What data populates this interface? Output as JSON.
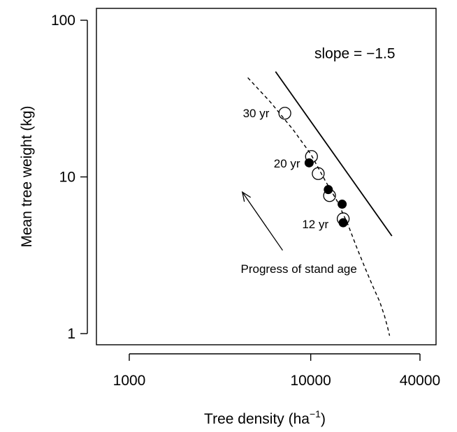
{
  "chart_data": {
    "type": "scatter",
    "xlabel": "Tree density (ha",
    "xlabel_superscript": "−1",
    "xlabel_close": ")",
    "ylabel": "Mean tree weight (kg)",
    "x_scale": "log",
    "y_scale": "log",
    "xlim": [
      1000,
      40000
    ],
    "ylim": [
      1,
      100
    ],
    "x_ticks": [
      1000,
      10000,
      40000
    ],
    "x_tick_labels": [
      "1000",
      "10000",
      "40000"
    ],
    "y_ticks": [
      1,
      10,
      100
    ],
    "y_tick_labels": [
      "1",
      "10",
      "100"
    ],
    "grid": false,
    "series": [
      {
        "marker": "open-circle",
        "points": [
          {
            "x": 7200,
            "y": 25.5
          },
          {
            "x": 10100,
            "y": 13.5
          },
          {
            "x": 11000,
            "y": 10.5
          },
          {
            "x": 12700,
            "y": 7.6
          },
          {
            "x": 15100,
            "y": 5.4
          }
        ]
      },
      {
        "marker": "filled-circle",
        "points": [
          {
            "x": 9800,
            "y": 12.3
          },
          {
            "x": 12500,
            "y": 8.3
          },
          {
            "x": 14900,
            "y": 6.7
          },
          {
            "x": 15100,
            "y": 5.1
          }
        ]
      }
    ],
    "curves": [
      {
        "style": "dashed",
        "points": [
          {
            "x": 4500,
            "y": 43
          },
          {
            "x": 6000,
            "y": 30
          },
          {
            "x": 8000,
            "y": 20
          },
          {
            "x": 10000,
            "y": 14
          },
          {
            "x": 12000,
            "y": 9.5
          },
          {
            "x": 14000,
            "y": 7
          },
          {
            "x": 16000,
            "y": 5
          },
          {
            "x": 18000,
            "y": 3.5
          },
          {
            "x": 20000,
            "y": 2.6
          },
          {
            "x": 22000,
            "y": 2
          },
          {
            "x": 24000,
            "y": 1.6
          },
          {
            "x": 25500,
            "y": 1.3
          },
          {
            "x": 26500,
            "y": 1.1
          },
          {
            "x": 27200,
            "y": 0.97
          }
        ]
      },
      {
        "style": "solid",
        "points": [
          {
            "x": 6400,
            "y": 47
          },
          {
            "x": 28000,
            "y": 4.2
          }
        ]
      }
    ],
    "annotations": [
      {
        "text": "slope = −1.5",
        "x": 17500,
        "y": 62,
        "size": "large"
      },
      {
        "text": "30 yr",
        "x": 5000,
        "y": 25.5,
        "size": "normal"
      },
      {
        "text": "20 yr",
        "x": 7400,
        "y": 12.2,
        "size": "normal"
      },
      {
        "text": "12 yr",
        "x": 10600,
        "y": 5.0,
        "size": "normal"
      },
      {
        "text": "Progress of stand age",
        "x": 8600,
        "y": 2.6,
        "size": "normal"
      }
    ],
    "arrow": {
      "from": {
        "x": 7000,
        "y": 3.4
      },
      "to": {
        "x": 4200,
        "y": 8.0
      }
    }
  }
}
